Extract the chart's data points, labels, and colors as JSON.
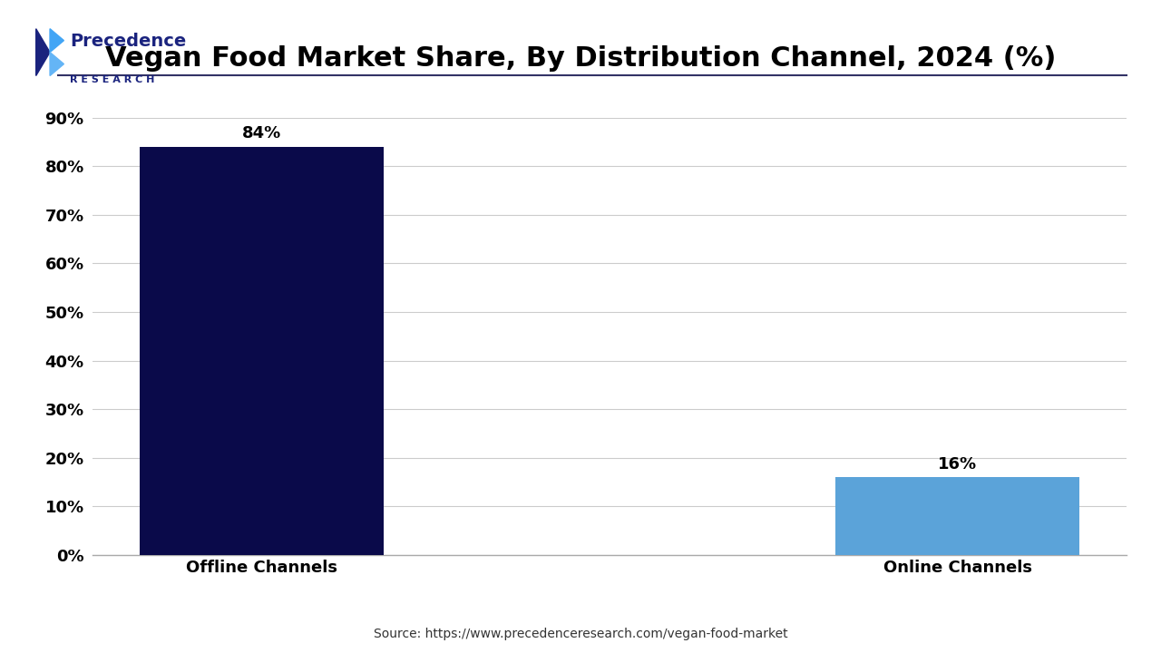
{
  "title": "Vegan Food Market Share, By Distribution Channel, 2024 (%)",
  "categories": [
    "Offline Channels",
    "Online Channels"
  ],
  "values": [
    84,
    16
  ],
  "bar_colors": [
    "#0a0a4a",
    "#5ba3d9"
  ],
  "value_labels": [
    "84%",
    "16%"
  ],
  "ylim": [
    0,
    90
  ],
  "yticks": [
    0,
    10,
    20,
    30,
    40,
    50,
    60,
    70,
    80,
    90
  ],
  "ytick_labels": [
    "0%",
    "10%",
    "20%",
    "30%",
    "40%",
    "50%",
    "60%",
    "70%",
    "80%",
    "90%"
  ],
  "background_color": "#ffffff",
  "grid_color": "#cccccc",
  "title_fontsize": 22,
  "label_fontsize": 13,
  "tick_fontsize": 13,
  "value_fontsize": 13,
  "source_text": "Source: https://www.precedenceresearch.com/vegan-food-market",
  "logo_text_line1": "Precedence",
  "logo_text_line2": "R E S E A R C H"
}
